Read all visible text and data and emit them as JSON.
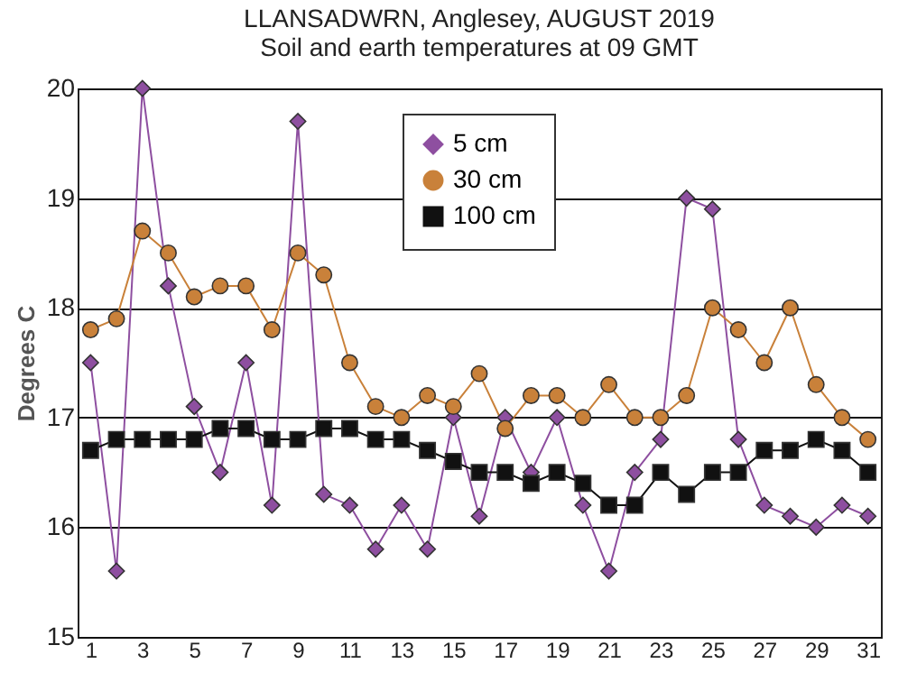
{
  "chart_data": {
    "type": "line",
    "title": "LLANSADWRN, Anglesey, AUGUST 2019",
    "subtitle": "Soil and earth temperatures at 09 GMT",
    "ylabel": "Degrees C",
    "x": [
      1,
      2,
      3,
      4,
      5,
      6,
      7,
      8,
      9,
      10,
      11,
      12,
      13,
      14,
      15,
      16,
      17,
      18,
      19,
      20,
      21,
      22,
      23,
      24,
      25,
      26,
      27,
      28,
      29,
      30,
      31
    ],
    "xlim": [
      0.5,
      31.5
    ],
    "xticks": [
      1,
      3,
      5,
      7,
      9,
      11,
      13,
      15,
      17,
      19,
      21,
      23,
      25,
      27,
      29,
      31
    ],
    "ylim": [
      15,
      20
    ],
    "yticks": [
      15,
      16,
      17,
      18,
      19,
      20
    ],
    "grid": "y",
    "legend": "top",
    "series": [
      {
        "name": "5 cm",
        "color": "#8e4fa0",
        "marker": "diamond",
        "values": [
          17.5,
          15.6,
          20,
          18.2,
          17.1,
          16.5,
          17.5,
          16.2,
          19.7,
          16.3,
          16.2,
          15.8,
          16.2,
          15.8,
          17.0,
          16.1,
          17.0,
          16.5,
          17.0,
          16.2,
          15.6,
          16.5,
          16.8,
          19.0,
          18.9,
          16.8,
          16.2,
          16.1,
          16.0,
          16.2,
          16.1
        ]
      },
      {
        "name": "30 cm",
        "color": "#c9813a",
        "marker": "circle",
        "values": [
          17.8,
          17.9,
          18.7,
          18.5,
          18.1,
          18.2,
          18.2,
          17.8,
          18.5,
          18.3,
          17.5,
          17.1,
          17.0,
          17.2,
          17.1,
          17.4,
          16.9,
          17.2,
          17.2,
          17.0,
          17.3,
          17.0,
          17.0,
          17.2,
          18.0,
          17.8,
          17.5,
          18.0,
          17.3,
          17.0,
          16.8
        ]
      },
      {
        "name": "100 cm",
        "color": "#111111",
        "marker": "square",
        "values": [
          16.7,
          16.8,
          16.8,
          16.8,
          16.8,
          16.9,
          16.9,
          16.8,
          16.8,
          16.9,
          16.9,
          16.8,
          16.8,
          16.7,
          16.6,
          16.5,
          16.5,
          16.4,
          16.5,
          16.4,
          16.2,
          16.2,
          16.5,
          16.3,
          16.5,
          16.5,
          16.7,
          16.7,
          16.8,
          16.7,
          16.5
        ]
      }
    ]
  }
}
